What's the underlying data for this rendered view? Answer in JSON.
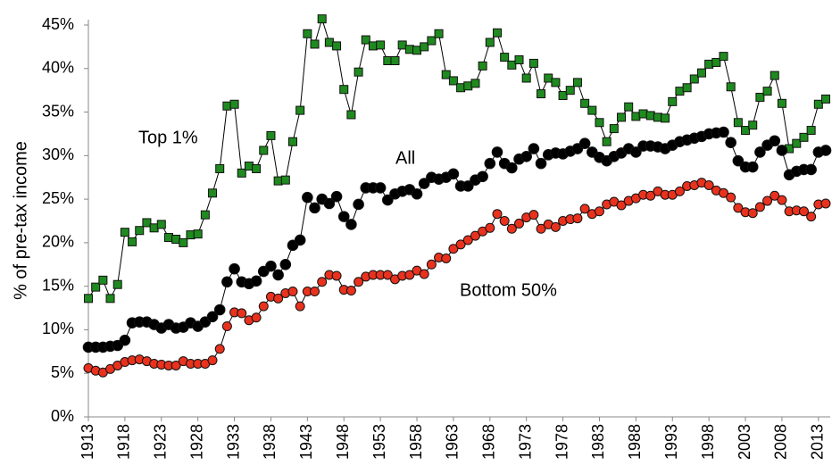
{
  "chart_data": {
    "type": "line",
    "y_label": "% of pre-tax income",
    "x": [
      1913,
      1914,
      1915,
      1916,
      1917,
      1918,
      1919,
      1920,
      1921,
      1922,
      1923,
      1924,
      1925,
      1926,
      1927,
      1928,
      1929,
      1930,
      1931,
      1932,
      1933,
      1934,
      1935,
      1936,
      1937,
      1938,
      1939,
      1940,
      1941,
      1942,
      1943,
      1944,
      1945,
      1946,
      1947,
      1948,
      1949,
      1950,
      1951,
      1952,
      1953,
      1954,
      1955,
      1956,
      1957,
      1958,
      1959,
      1960,
      1961,
      1962,
      1963,
      1964,
      1965,
      1966,
      1967,
      1968,
      1969,
      1970,
      1971,
      1972,
      1973,
      1974,
      1975,
      1976,
      1977,
      1978,
      1979,
      1980,
      1981,
      1982,
      1983,
      1984,
      1985,
      1986,
      1987,
      1988,
      1989,
      1990,
      1991,
      1992,
      1993,
      1994,
      1995,
      1996,
      1997,
      1998,
      1999,
      2000,
      2001,
      2002,
      2003,
      2004,
      2005,
      2006,
      2007,
      2008,
      2009,
      2010,
      2011,
      2012,
      2013,
      2014
    ],
    "series": [
      {
        "name": "Top 1%",
        "color": "#1f8a1f",
        "marker": "square",
        "values": [
          13.6,
          14.9,
          15.7,
          13.6,
          15.2,
          21.2,
          20.1,
          21.4,
          22.3,
          21.7,
          22.1,
          20.6,
          20.4,
          20.0,
          20.9,
          21.0,
          23.2,
          25.7,
          28.5,
          35.7,
          35.9,
          28.0,
          28.8,
          28.5,
          30.6,
          32.3,
          27.1,
          27.2,
          31.6,
          35.2,
          44.0,
          42.8,
          45.7,
          43.0,
          42.6,
          37.6,
          34.7,
          39.6,
          43.3,
          42.6,
          42.7,
          40.9,
          40.9,
          42.7,
          42.2,
          42.1,
          42.5,
          43.2,
          44.0,
          39.3,
          38.6,
          37.8,
          38.0,
          38.3,
          40.3,
          43.0,
          44.1,
          41.3,
          40.4,
          41.0,
          38.9,
          40.6,
          37.1,
          38.9,
          38.4,
          36.9,
          37.5,
          38.4,
          36.0,
          35.2,
          33.8,
          31.6,
          33.1,
          34.4,
          35.6,
          34.5,
          34.8,
          34.6,
          34.4,
          34.3,
          36.2,
          37.4,
          37.8,
          38.8,
          39.5,
          40.5,
          40.7,
          41.4,
          37.9,
          33.8,
          32.9,
          33.5,
          36.7,
          37.4,
          39.2,
          36.0,
          30.8,
          31.4,
          32.1,
          32.9,
          35.9,
          36.5
        ]
      },
      {
        "name": "All",
        "color": "#000000",
        "marker": "circle",
        "values": [
          8.0,
          8.0,
          8.0,
          8.1,
          8.2,
          8.8,
          10.8,
          10.9,
          10.9,
          10.6,
          10.2,
          10.6,
          10.2,
          10.3,
          10.8,
          10.4,
          10.9,
          11.5,
          12.3,
          15.5,
          17.0,
          15.5,
          15.3,
          15.6,
          16.7,
          17.3,
          16.3,
          17.5,
          19.7,
          20.3,
          25.2,
          24.0,
          25.0,
          24.5,
          25.3,
          23.0,
          22.1,
          24.4,
          26.3,
          26.3,
          26.3,
          24.9,
          25.6,
          25.9,
          26.1,
          25.6,
          26.8,
          27.5,
          27.3,
          27.5,
          27.9,
          26.5,
          26.5,
          27.2,
          27.6,
          29.1,
          30.4,
          29.1,
          28.6,
          29.6,
          29.9,
          30.8,
          29.1,
          30.1,
          30.3,
          30.2,
          30.5,
          30.8,
          31.4,
          30.4,
          29.8,
          29.4,
          29.9,
          30.3,
          30.8,
          30.4,
          31.1,
          31.1,
          31.0,
          30.8,
          31.2,
          31.6,
          31.8,
          32.0,
          32.2,
          32.5,
          32.6,
          32.7,
          31.5,
          29.4,
          28.7,
          28.7,
          30.4,
          31.2,
          31.7,
          30.6,
          27.8,
          28.2,
          28.4,
          28.4,
          30.4,
          30.6
        ]
      },
      {
        "name": "Bottom 50%",
        "color": "#e8321e",
        "marker": "circle",
        "values": [
          5.6,
          5.3,
          5.1,
          5.5,
          5.9,
          6.3,
          6.5,
          6.6,
          6.4,
          6.1,
          6.0,
          5.9,
          5.9,
          6.4,
          6.1,
          6.1,
          6.1,
          6.5,
          7.8,
          10.4,
          12.0,
          11.9,
          11.1,
          11.4,
          12.7,
          13.8,
          13.6,
          14.2,
          14.4,
          12.7,
          14.4,
          14.4,
          15.5,
          16.3,
          16.2,
          14.6,
          14.5,
          15.5,
          16.1,
          16.3,
          16.3,
          16.3,
          15.8,
          16.2,
          16.3,
          16.8,
          16.4,
          17.5,
          18.3,
          18.2,
          19.3,
          19.8,
          20.3,
          20.8,
          21.3,
          21.7,
          23.3,
          22.5,
          21.6,
          22.2,
          22.9,
          23.2,
          21.6,
          22.1,
          21.8,
          22.5,
          22.7,
          22.8,
          23.9,
          23.3,
          23.6,
          24.4,
          24.7,
          24.3,
          24.8,
          25.1,
          25.5,
          25.4,
          25.9,
          25.5,
          25.5,
          25.9,
          26.5,
          26.6,
          26.9,
          26.6,
          26.0,
          25.7,
          25.2,
          24.0,
          23.5,
          23.4,
          24.1,
          24.8,
          25.4,
          24.9,
          23.6,
          23.7,
          23.6,
          23.0,
          24.4,
          24.5
        ]
      }
    ],
    "xlim": [
      1913,
      2014
    ],
    "xticks": [
      1913,
      1918,
      1923,
      1928,
      1933,
      1938,
      1943,
      1948,
      1953,
      1958,
      1963,
      1968,
      1973,
      1978,
      1983,
      1988,
      1993,
      1998,
      2003,
      2008,
      2013
    ],
    "ylim": [
      0,
      45
    ],
    "yticks": [
      {
        "value": 0,
        "label": "0%"
      },
      {
        "value": 5,
        "label": "5%"
      },
      {
        "value": 10,
        "label": "10%"
      },
      {
        "value": 15,
        "label": "15%"
      },
      {
        "value": 20,
        "label": "20%"
      },
      {
        "value": 25,
        "label": "25%"
      },
      {
        "value": 30,
        "label": "30%"
      },
      {
        "value": 35,
        "label": "35%"
      },
      {
        "value": 40,
        "label": "40%"
      },
      {
        "value": 45,
        "label": "45%"
      }
    ],
    "grid": false
  }
}
